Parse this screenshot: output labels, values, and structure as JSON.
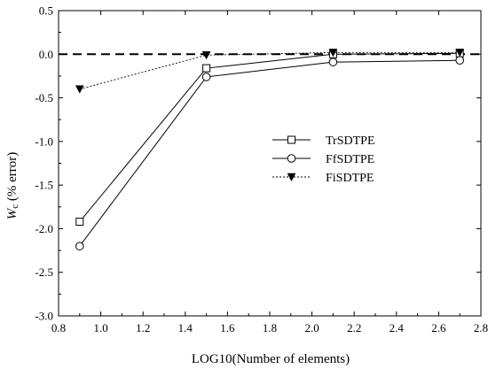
{
  "chart_data": {
    "type": "line",
    "xlabel": "LOG10(Number of elements)",
    "ylabel_italic": "W",
    "ylabel_sub": "c",
    "ylabel_rest": " (% error)",
    "xlim": [
      0.8,
      2.8
    ],
    "ylim": [
      -3.0,
      0.5
    ],
    "xticks": [
      0.8,
      1.0,
      1.2,
      1.4,
      1.6,
      1.8,
      2.0,
      2.2,
      2.4,
      2.6,
      2.8
    ],
    "xtick_labels": [
      "0.8",
      "1.0",
      "1.2",
      "1.4",
      "1.6",
      "1.8",
      "2.0",
      "2.2",
      "2.4",
      "2.6",
      "2.8"
    ],
    "yticks": [
      0.5,
      0.0,
      -0.5,
      -1.0,
      -1.5,
      -2.0,
      -2.5,
      -3.0
    ],
    "ytick_labels": [
      "0.5",
      "0.0",
      "-0.5",
      "-1.0",
      "-1.5",
      "-2.0",
      "-2.5",
      "-3.0"
    ],
    "reference_line_y": 0.0,
    "grid": false,
    "legend_position": "center-right",
    "series": [
      {
        "name": "TrSDTPE",
        "marker": "square-open",
        "line": "solid",
        "x": [
          0.9,
          1.5,
          2.1,
          2.7
        ],
        "y": [
          -1.92,
          -0.16,
          0.0,
          0.01
        ]
      },
      {
        "name": "FfSDTPE",
        "marker": "circle-open",
        "line": "solid",
        "x": [
          0.9,
          1.5,
          2.1,
          2.7
        ],
        "y": [
          -2.2,
          -0.26,
          -0.09,
          -0.07
        ]
      },
      {
        "name": "FiSDTPE",
        "marker": "triangle-down-filled",
        "line": "dotted",
        "x": [
          0.9,
          1.5,
          2.1,
          2.7
        ],
        "y": [
          -0.4,
          -0.01,
          0.02,
          0.02
        ]
      }
    ]
  }
}
